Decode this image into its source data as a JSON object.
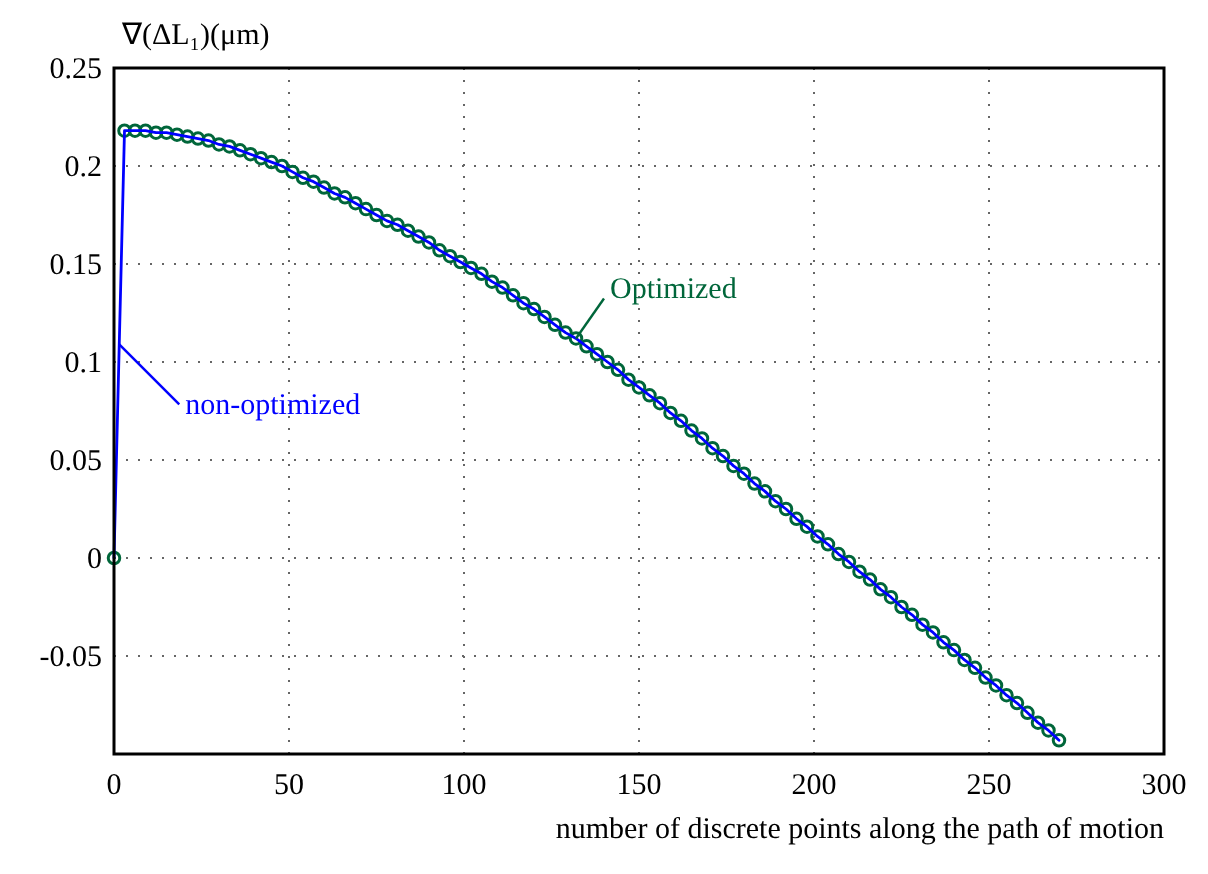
{
  "chart_data": {
    "type": "line",
    "ylabel": "∇(ΔL₁)(μm)",
    "xlabel": "number of discrete points along the path of motion",
    "x": [
      0,
      3,
      6,
      9,
      12,
      15,
      18,
      21,
      24,
      27,
      30,
      33,
      36,
      39,
      42,
      45,
      48,
      51,
      54,
      57,
      60,
      63,
      66,
      69,
      72,
      75,
      78,
      81,
      84,
      87,
      90,
      93,
      96,
      99,
      102,
      105,
      108,
      111,
      114,
      117,
      120,
      123,
      126,
      129,
      132,
      135,
      138,
      141,
      144,
      147,
      150,
      153,
      156,
      159,
      162,
      165,
      168,
      171,
      174,
      177,
      180,
      183,
      186,
      189,
      192,
      195,
      198,
      201,
      204,
      207,
      210,
      213,
      216,
      219,
      222,
      225,
      228,
      231,
      234,
      237,
      240,
      243,
      246,
      249,
      252,
      255,
      258,
      261,
      264,
      267,
      270
    ],
    "series": [
      {
        "name": "non-optimized",
        "color": "#0000ff",
        "marker": "none",
        "values": [
          0,
          0.218,
          0.218,
          0.218,
          0.217,
          0.217,
          0.216,
          0.215,
          0.214,
          0.213,
          0.211,
          0.21,
          0.208,
          0.206,
          0.204,
          0.202,
          0.2,
          0.197,
          0.194,
          0.192,
          0.189,
          0.186,
          0.184,
          0.181,
          0.178,
          0.175,
          0.172,
          0.17,
          0.167,
          0.164,
          0.161,
          0.157,
          0.154,
          0.151,
          0.148,
          0.145,
          0.141,
          0.138,
          0.134,
          0.13,
          0.127,
          0.123,
          0.119,
          0.115,
          0.112,
          0.108,
          0.104,
          0.1,
          0.096,
          0.091,
          0.087,
          0.083,
          0.079,
          0.074,
          0.07,
          0.065,
          0.061,
          0.056,
          0.052,
          0.047,
          0.043,
          0.038,
          0.034,
          0.029,
          0.025,
          0.02,
          0.016,
          0.011,
          0.007,
          0.002,
          -0.002,
          -0.007,
          -0.011,
          -0.016,
          -0.02,
          -0.025,
          -0.029,
          -0.034,
          -0.038,
          -0.043,
          -0.047,
          -0.052,
          -0.056,
          -0.061,
          -0.065,
          -0.07,
          -0.074,
          -0.079,
          -0.084,
          -0.088,
          -0.093
        ]
      },
      {
        "name": "Optimized",
        "type": "scatter",
        "color": "#00663a",
        "marker": "circle",
        "values": [
          0,
          0.218,
          0.218,
          0.218,
          0.217,
          0.217,
          0.216,
          0.215,
          0.214,
          0.213,
          0.211,
          0.21,
          0.208,
          0.206,
          0.204,
          0.202,
          0.2,
          0.197,
          0.194,
          0.192,
          0.189,
          0.186,
          0.184,
          0.181,
          0.178,
          0.175,
          0.172,
          0.17,
          0.167,
          0.164,
          0.161,
          0.157,
          0.154,
          0.151,
          0.148,
          0.145,
          0.141,
          0.138,
          0.134,
          0.13,
          0.127,
          0.123,
          0.119,
          0.115,
          0.112,
          0.108,
          0.104,
          0.1,
          0.096,
          0.091,
          0.087,
          0.083,
          0.079,
          0.074,
          0.07,
          0.065,
          0.061,
          0.056,
          0.052,
          0.047,
          0.043,
          0.038,
          0.034,
          0.029,
          0.025,
          0.02,
          0.016,
          0.011,
          0.007,
          0.002,
          -0.002,
          -0.007,
          -0.011,
          -0.016,
          -0.02,
          -0.025,
          -0.029,
          -0.034,
          -0.038,
          -0.043,
          -0.047,
          -0.052,
          -0.056,
          -0.061,
          -0.065,
          -0.07,
          -0.074,
          -0.079,
          -0.084,
          -0.088,
          -0.093
        ]
      }
    ],
    "xlim": [
      0,
      300
    ],
    "xticks": [
      0,
      50,
      100,
      150,
      200,
      250,
      300
    ],
    "ylim": [
      -0.1,
      0.25
    ],
    "yticks": [
      {
        "value": -0.1,
        "label": null
      },
      -0.05,
      0,
      0.05,
      0.1,
      0.15,
      0.2,
      0.25
    ],
    "grid": true,
    "line_style": "solid"
  }
}
